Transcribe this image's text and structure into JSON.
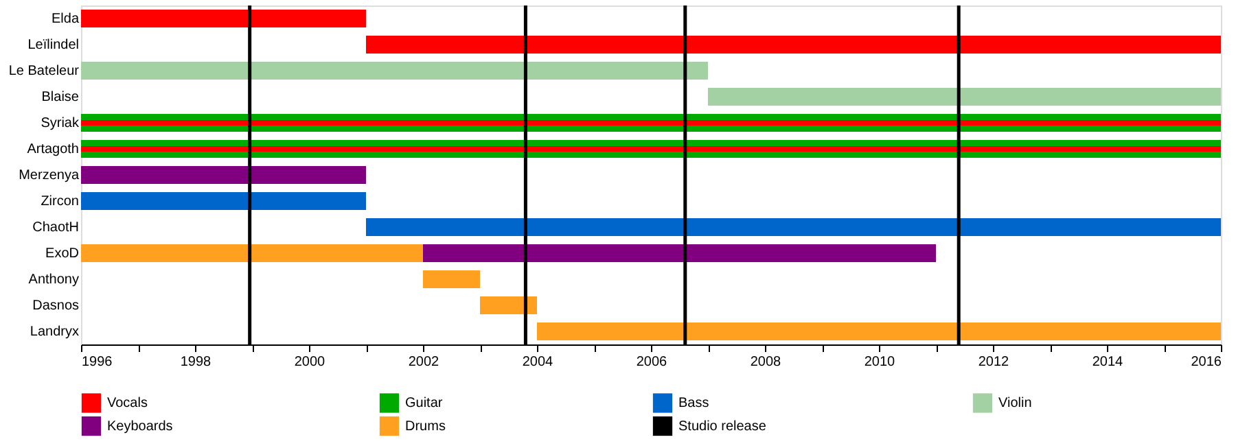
{
  "chart_data": {
    "type": "bar",
    "orientation": "horizontal",
    "grid": false,
    "legend": "bottom",
    "categories": [
      "Elda",
      "Leïlindel",
      "Le Bateleur",
      "Blaise",
      "Syriak",
      "Artagoth",
      "Merzenya",
      "Zircon",
      "ChaotH",
      "ExoD",
      "Anthony",
      "Dasnos",
      "Landryx"
    ],
    "xlim": [
      1996,
      2016
    ],
    "xticks": [
      1996,
      {
        "value": 1997,
        "label": null
      },
      1998,
      {
        "value": 1999,
        "label": null
      },
      2000,
      {
        "value": 2001,
        "label": null
      },
      2002,
      {
        "value": 2003,
        "label": null
      },
      2004,
      {
        "value": 2005,
        "label": null
      },
      2006,
      {
        "value": 2007,
        "label": null
      },
      2008,
      {
        "value": 2009,
        "label": null
      },
      2010,
      {
        "value": 2011,
        "label": null
      },
      2012,
      {
        "value": 2013,
        "label": null
      },
      2014,
      {
        "value": 2015,
        "label": null
      },
      2016
    ],
    "series": [
      {
        "name": "Vocals",
        "color": "#ff0000",
        "values": [
          5,
          15,
          null,
          null,
          20,
          20,
          null,
          null,
          null,
          null,
          null,
          null,
          null
        ],
        "base": [
          1996,
          2001,
          null,
          null,
          1996,
          1996,
          null,
          null,
          null,
          null,
          null,
          null,
          null
        ]
      },
      {
        "name": "Guitar",
        "color": "#00aa00",
        "values": [
          null,
          null,
          null,
          null,
          20,
          20,
          null,
          null,
          null,
          null,
          null,
          null,
          null
        ],
        "base": [
          null,
          null,
          null,
          null,
          1996,
          1996,
          null,
          null,
          null,
          null,
          null,
          null,
          null
        ]
      },
      {
        "name": "Bass",
        "color": "#0066cc",
        "values": [
          null,
          null,
          null,
          null,
          null,
          null,
          null,
          5,
          15,
          null,
          null,
          null,
          null
        ],
        "base": [
          null,
          null,
          null,
          null,
          null,
          null,
          null,
          1996,
          2001,
          null,
          null,
          null,
          null
        ]
      },
      {
        "name": "Violin",
        "color": "#a3d1a3",
        "values": [
          null,
          null,
          11,
          9,
          null,
          null,
          null,
          null,
          null,
          null,
          null,
          null,
          null
        ],
        "base": [
          null,
          null,
          1996,
          2007,
          null,
          null,
          null,
          null,
          null,
          null,
          null,
          null,
          null
        ]
      },
      {
        "name": "Keyboards",
        "color": "#800080",
        "values": [
          null,
          null,
          null,
          null,
          null,
          null,
          5,
          null,
          null,
          9,
          null,
          null,
          null
        ],
        "base": [
          null,
          null,
          null,
          null,
          null,
          null,
          1996,
          null,
          null,
          2002,
          null,
          null,
          null
        ]
      },
      {
        "name": "Drums",
        "color": "#ffa020",
        "values": [
          null,
          null,
          null,
          null,
          null,
          null,
          null,
          null,
          null,
          6,
          1,
          1,
          12
        ],
        "base": [
          null,
          null,
          null,
          null,
          null,
          null,
          null,
          null,
          null,
          1996,
          2002,
          2003,
          2004
        ]
      }
    ],
    "ref_lines": [
      {
        "axis": "x",
        "value": 1998.96,
        "label": "Studio release",
        "color": "#000000"
      },
      {
        "axis": "x",
        "value": 2003.8,
        "label": null,
        "color": "#000000"
      },
      {
        "axis": "x",
        "value": 2006.6,
        "label": null,
        "color": "#000000"
      },
      {
        "axis": "x",
        "value": 2011.4,
        "label": null,
        "color": "#000000"
      }
    ]
  }
}
